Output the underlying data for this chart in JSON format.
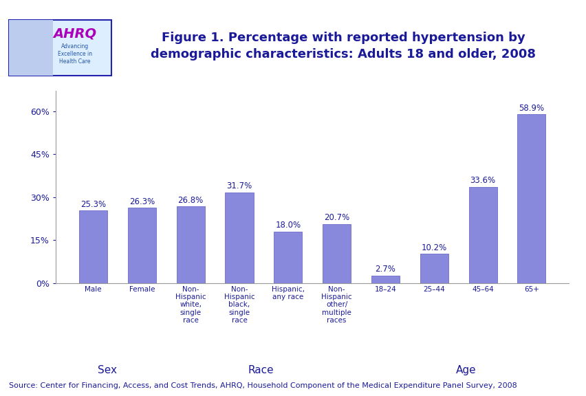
{
  "title": "Figure 1. Percentage with reported hypertension by\ndemographic characteristics: Adults 18 and older, 2008",
  "title_color": "#1a1a99",
  "bar_color": "#8888dd",
  "bar_edge_color": "#7777cc",
  "categories": [
    "Male",
    "Female",
    "Non-\nHispanic\nwhite,\nsingle\nrace",
    "Non-\nHispanic\nblack,\nsingle\nrace",
    "Hispanic,\nany race",
    "Non-\nHispanic\nother/\nmultiple\nraces",
    "18–24",
    "25–44",
    "45–64",
    "65+"
  ],
  "values": [
    25.3,
    26.3,
    26.8,
    31.7,
    18.0,
    20.7,
    2.7,
    10.2,
    33.6,
    58.9
  ],
  "value_labels": [
    "25.3%",
    "26.3%",
    "26.8%",
    "31.7%",
    "18.0%",
    "20.7%",
    "2.7%",
    "10.2%",
    "33.6%",
    "58.9%"
  ],
  "group_labels": [
    "Sex",
    "Race",
    "Age"
  ],
  "yticks": [
    0,
    15,
    30,
    45,
    60
  ],
  "ytick_labels": [
    "0%",
    "15%",
    "30%",
    "45%",
    "60%"
  ],
  "ylim": [
    0,
    67
  ],
  "source_text": "Source: Center for Financing, Access, and Cost Trends, AHRQ, Household Component of the Medical Expenditure Panel Survey, 2008",
  "background_color": "#ffffff",
  "label_color": "#1a1a99",
  "top_bar_color": "#000099",
  "value_fontsize": 8.5,
  "tick_fontsize": 9,
  "group_label_fontsize": 11,
  "source_fontsize": 8,
  "title_fontsize": 13
}
